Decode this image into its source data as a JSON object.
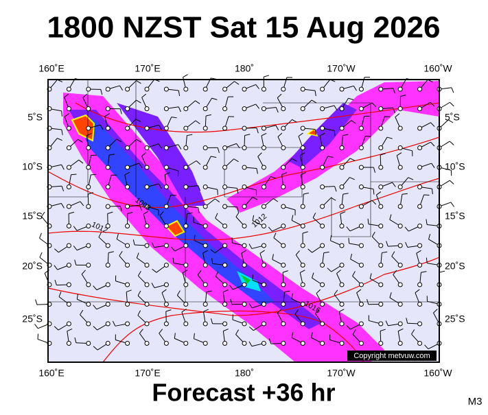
{
  "header": {
    "title": "1800 NZST Sat 15 Aug 2026"
  },
  "map": {
    "lon_labels": [
      "160˚E",
      "170˚E",
      "180˚",
      "170˚W",
      "160˚W"
    ],
    "lat_labels": [
      "5˚S",
      "10˚S",
      "15˚S",
      "20˚S",
      "25˚S"
    ],
    "isobar_labels": [
      "1008",
      "1012",
      "1012",
      "1016"
    ],
    "copyright": "Copyright metvuw.com"
  },
  "footer": {
    "forecast": "Forecast +36 hr",
    "code": "M3"
  }
}
